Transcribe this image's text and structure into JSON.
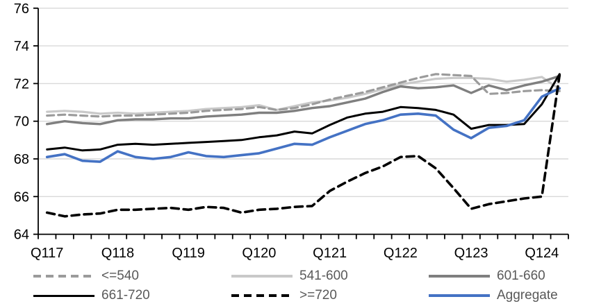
{
  "chart_data": {
    "type": "line",
    "title": "",
    "xlabel": "",
    "ylabel": "",
    "x_tick_labels": [
      "Q117",
      "Q118",
      "Q119",
      "Q120",
      "Q121",
      "Q122",
      "Q123",
      "Q124"
    ],
    "points_per_x_label": 4,
    "n_points": 30,
    "x_range_note": "quarterly data Q1 2017 through Q2 2024",
    "ylim": [
      64,
      76
    ],
    "y_tick_step": 2,
    "y_tick_labels": [
      "64",
      "66",
      "68",
      "70",
      "72",
      "74",
      "76"
    ],
    "grid": "horizontal",
    "legend_position": "bottom",
    "style": {
      "gridline_color": "#D9D9D9",
      "axis_color": "#000000",
      "axis_label_color": "#000000",
      "legend_text_color": "#595959",
      "background": "#FFFFFF"
    },
    "series": [
      {
        "name": "<=540",
        "color": "#9B9B9B",
        "dash": "10 6",
        "width": 3.2,
        "values": [
          70.3,
          70.35,
          70.3,
          70.25,
          70.3,
          70.3,
          70.35,
          70.4,
          70.45,
          70.55,
          70.6,
          70.65,
          70.75,
          70.6,
          70.7,
          70.9,
          71.15,
          71.35,
          71.55,
          71.8,
          72.05,
          72.3,
          72.5,
          72.45,
          72.4,
          71.45,
          71.5,
          71.6,
          71.65,
          71.6
        ]
      },
      {
        "name": "541-600",
        "color": "#C9C9C9",
        "dash": "",
        "width": 3.2,
        "values": [
          70.5,
          70.55,
          70.5,
          70.4,
          70.45,
          70.4,
          70.45,
          70.5,
          70.55,
          70.65,
          70.7,
          70.75,
          70.85,
          70.6,
          70.8,
          71.0,
          71.1,
          71.25,
          71.45,
          71.7,
          71.95,
          72.1,
          72.25,
          72.3,
          72.3,
          72.25,
          72.1,
          72.2,
          72.35,
          71.7
        ]
      },
      {
        "name": "601-660",
        "color": "#7F7F7F",
        "dash": "",
        "width": 3.4,
        "values": [
          69.85,
          70.0,
          69.9,
          69.85,
          70.05,
          70.1,
          70.1,
          70.15,
          70.15,
          70.25,
          70.3,
          70.35,
          70.45,
          70.45,
          70.55,
          70.7,
          70.8,
          71.0,
          71.2,
          71.55,
          71.85,
          71.75,
          71.8,
          71.9,
          71.5,
          71.9,
          71.65,
          71.9,
          72.1,
          72.4
        ]
      },
      {
        "name": "661-720",
        "color": "#000000",
        "dash": "",
        "width": 3.0,
        "values": [
          68.5,
          68.6,
          68.45,
          68.5,
          68.75,
          68.8,
          68.75,
          68.8,
          68.85,
          68.9,
          68.95,
          69.0,
          69.15,
          69.25,
          69.45,
          69.35,
          69.8,
          70.2,
          70.4,
          70.5,
          70.75,
          70.7,
          70.6,
          70.35,
          69.6,
          69.8,
          69.8,
          69.85,
          70.9,
          72.5
        ]
      },
      {
        "name": ">=720",
        "color": "#000000",
        "dash": "11 7",
        "width": 3.6,
        "values": [
          65.15,
          64.95,
          65.05,
          65.1,
          65.3,
          65.3,
          65.35,
          65.4,
          65.3,
          65.45,
          65.4,
          65.15,
          65.3,
          65.35,
          65.45,
          65.5,
          66.3,
          66.8,
          67.25,
          67.6,
          68.1,
          68.15,
          67.5,
          66.45,
          65.35,
          65.6,
          65.75,
          65.9,
          66.0,
          72.45
        ]
      },
      {
        "name": "Aggregate",
        "color": "#4472C4",
        "dash": "",
        "width": 3.6,
        "values": [
          68.1,
          68.25,
          67.9,
          67.85,
          68.4,
          68.1,
          68.0,
          68.1,
          68.35,
          68.15,
          68.1,
          68.2,
          68.3,
          68.55,
          68.8,
          68.75,
          69.15,
          69.5,
          69.85,
          70.05,
          70.35,
          70.4,
          70.3,
          69.55,
          69.1,
          69.65,
          69.75,
          70.05,
          71.3,
          71.75
        ]
      }
    ],
    "draw_order": [
      1,
      2,
      0,
      3,
      5,
      4
    ]
  },
  "legend": {
    "rows": 2,
    "cols": 3,
    "order": [
      "<=540",
      "541-600",
      "601-660",
      "661-720",
      ">=720",
      "Aggregate"
    ]
  }
}
